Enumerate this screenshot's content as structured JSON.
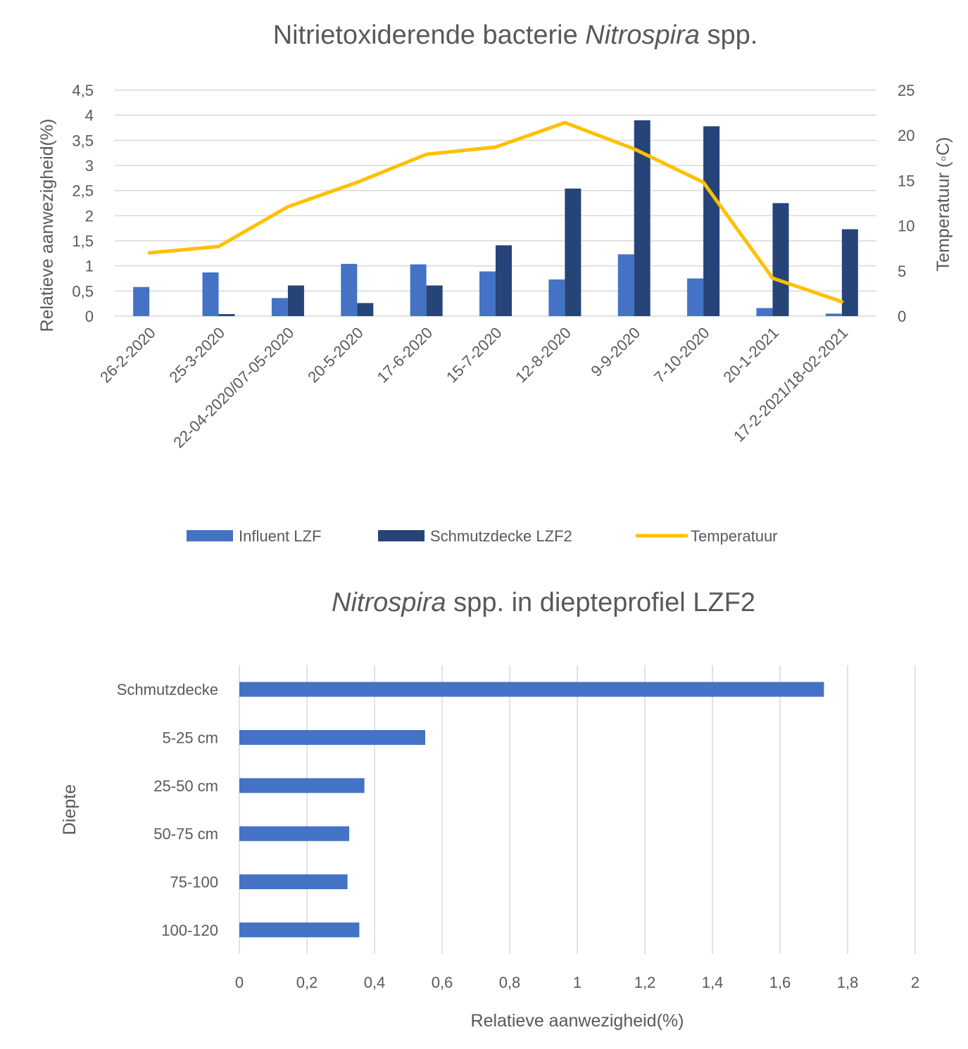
{
  "chart_data": [
    {
      "type": "bar",
      "title_parts": [
        "Nitrietoxiderende bacterie ",
        "Nitrospira",
        " spp."
      ],
      "categories": [
        "26-2-2020",
        "25-3-2020",
        "22-04-2020/07-05-2020",
        "20-5-2020",
        "17-6-2020",
        "15-7-2020",
        "12-8-2020",
        "9-9-2020",
        "7-10-2020",
        "20-1-2021",
        "17-2-2021/18-02-2021"
      ],
      "ylabel": "Relatieve aanwezigheid(%)",
      "y2label": "Temperatuur (◦C)",
      "ylim": [
        0,
        4.5
      ],
      "y2lim": [
        0,
        25
      ],
      "yticks": [
        "0",
        "0,5",
        "1",
        "1,5",
        "2",
        "2,5",
        "3",
        "3,5",
        "4",
        "4,5"
      ],
      "y2ticks": [
        "0",
        "5",
        "10",
        "15",
        "20",
        "25"
      ],
      "grid": true,
      "legend_position": "bottom",
      "series": [
        {
          "name": "Influent LZF",
          "type": "bar",
          "axis": "left",
          "color": "#4472c4",
          "values": [
            0.58,
            0.87,
            0.36,
            1.04,
            1.03,
            0.89,
            0.73,
            1.23,
            0.75,
            0.16,
            0.05
          ]
        },
        {
          "name": "Schmutzdecke LZF2",
          "type": "bar",
          "axis": "left",
          "color": "#264478",
          "values": [
            null,
            0.04,
            0.61,
            0.26,
            0.61,
            1.41,
            2.54,
            3.9,
            3.78,
            2.25,
            1.73
          ]
        },
        {
          "name": "Temperatuur",
          "type": "line",
          "axis": "right",
          "color": "#ffc000",
          "values": [
            7.0,
            7.7,
            12.1,
            14.8,
            17.9,
            18.7,
            21.4,
            18.5,
            14.8,
            4.2,
            1.6
          ]
        }
      ]
    },
    {
      "type": "bar",
      "orientation": "horizontal",
      "title_parts": [
        "Nitrospira",
        " spp. in diepteprofiel LZF2"
      ],
      "categories": [
        "Schmutzdecke",
        "5-25 cm",
        "25-50 cm",
        "50-75 cm",
        "75-100",
        "100-120"
      ],
      "values": [
        1.73,
        0.55,
        0.37,
        0.325,
        0.32,
        0.355
      ],
      "xlabel": "Relatieve aanwezigheid(%)",
      "ylabel": "Diepte",
      "xlim": [
        0,
        2
      ],
      "xticks": [
        "0",
        "0,2",
        "0,4",
        "0,6",
        "0,8",
        "1",
        "1,2",
        "1,4",
        "1,6",
        "1,8",
        "2"
      ],
      "grid": true,
      "color": "#4472c4"
    }
  ]
}
